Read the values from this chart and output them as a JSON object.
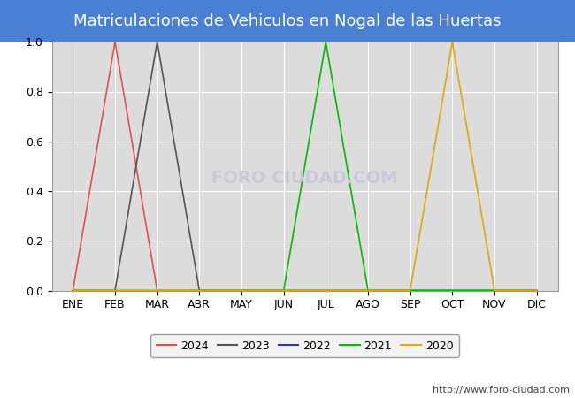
{
  "title": "Matriculaciones de Vehiculos en Nogal de las Huertas",
  "title_bg_color": "#4a7fd4",
  "title_text_color": "#ffffff",
  "months": [
    "ENE",
    "FEB",
    "MAR",
    "ABR",
    "MAY",
    "JUN",
    "JUL",
    "AGO",
    "SEP",
    "OCT",
    "NOV",
    "DIC"
  ],
  "series": [
    {
      "label": "2024",
      "color": "#e05050",
      "data": [
        0.0,
        1.0,
        0.0,
        0.0,
        0.0,
        0.0,
        0.0,
        0.0,
        0.0,
        0.0,
        0.0,
        0.0
      ]
    },
    {
      "label": "2023",
      "color": "#555555",
      "data": [
        0.0,
        0.0,
        1.0,
        0.0,
        0.0,
        0.0,
        0.0,
        0.0,
        0.0,
        0.0,
        0.0,
        0.0
      ]
    },
    {
      "label": "2022",
      "color": "#3333cc",
      "data": [
        0.0,
        0.0,
        0.0,
        0.0,
        0.0,
        0.0,
        0.0,
        0.0,
        0.0,
        0.0,
        0.0,
        0.0
      ]
    },
    {
      "label": "2021",
      "color": "#00bb00",
      "data": [
        0.0,
        0.0,
        0.0,
        0.0,
        0.0,
        0.0,
        1.0,
        0.0,
        0.0,
        0.0,
        0.0,
        0.0
      ]
    },
    {
      "label": "2020",
      "color": "#ddaa00",
      "data": [
        0.0,
        0.0,
        0.0,
        0.0,
        0.0,
        0.0,
        0.0,
        0.0,
        0.0,
        1.0,
        0.0,
        0.0
      ]
    }
  ],
  "ylim": [
    0.0,
    1.0
  ],
  "yticks": [
    0.0,
    0.2,
    0.4,
    0.6,
    0.8,
    1.0
  ],
  "plot_bg_color": "#dcdcdc",
  "grid_color": "#ffffff",
  "fig_bg_color": "#ffffff",
  "watermark": "FORO CIUDAD.COM",
  "watermark_color": "#c8c8d8",
  "url": "http://www.foro-ciudad.com",
  "legend_box_color": "#f0f0f0",
  "legend_box_edge": "#888888",
  "title_fontsize": 13,
  "tick_fontsize": 9,
  "legend_fontsize": 9,
  "url_fontsize": 8
}
